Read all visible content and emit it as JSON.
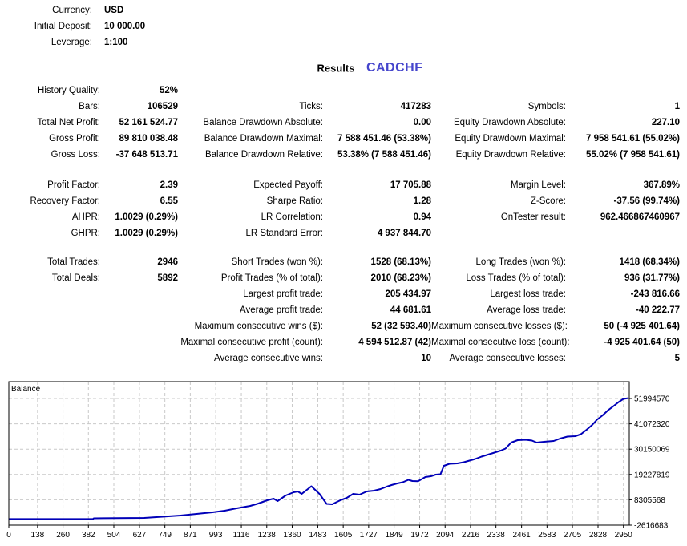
{
  "header": {
    "rows": [
      {
        "label": "Currency:",
        "value": "USD"
      },
      {
        "label": "Initial Deposit:",
        "value": "10 000.00"
      },
      {
        "label": "Leverage:",
        "value": "1:100"
      }
    ]
  },
  "title": {
    "results_label": "Results",
    "symbol": "CADCHF",
    "symbol_color": "#4545cc"
  },
  "stats": {
    "blocks": [
      {
        "rows": [
          [
            "History Quality:",
            "52%",
            "",
            "",
            "",
            ""
          ],
          [
            "Bars:",
            "106529",
            "Ticks:",
            "417283",
            "Symbols:",
            "1"
          ],
          [
            "Total Net Profit:",
            "52 161 524.77",
            "Balance Drawdown Absolute:",
            "0.00",
            "Equity Drawdown Absolute:",
            "227.10"
          ],
          [
            "Gross Profit:",
            "89 810 038.48",
            "Balance Drawdown Maximal:",
            "7 588 451.46 (53.38%)",
            "Equity Drawdown Maximal:",
            "7 958 541.61 (55.02%)"
          ],
          [
            "Gross Loss:",
            "-37 648 513.71",
            "Balance Drawdown Relative:",
            "53.38% (7 588 451.46)",
            "Equity Drawdown Relative:",
            "55.02% (7 958 541.61)"
          ]
        ]
      },
      {
        "rows": [
          [
            "Profit Factor:",
            "2.39",
            "Expected Payoff:",
            "17 705.88",
            "Margin Level:",
            "367.89%"
          ],
          [
            "Recovery Factor:",
            "6.55",
            "Sharpe Ratio:",
            "1.28",
            "Z-Score:",
            "-37.56 (99.74%)"
          ],
          [
            "AHPR:",
            "1.0029 (0.29%)",
            "LR Correlation:",
            "0.94",
            "OnTester result:",
            "962.466867460967"
          ],
          [
            "GHPR:",
            "1.0029 (0.29%)",
            "LR Standard Error:",
            "4 937 844.70",
            "",
            ""
          ]
        ]
      },
      {
        "rows": [
          [
            "Total Trades:",
            "2946",
            "Short Trades (won %):",
            "1528 (68.13%)",
            "Long Trades (won %):",
            "1418 (68.34%)"
          ],
          [
            "Total Deals:",
            "5892",
            "Profit Trades (% of total):",
            "2010 (68.23%)",
            "Loss Trades (% of total):",
            "936 (31.77%)"
          ],
          [
            "",
            "",
            "Largest profit trade:",
            "205 434.97",
            "Largest loss trade:",
            "-243 816.66"
          ],
          [
            "",
            "",
            "Average profit trade:",
            "44 681.61",
            "Average loss trade:",
            "-40 222.77"
          ],
          [
            "",
            "",
            "Maximum consecutive wins ($):",
            "52 (32 593.40)",
            "Maximum consecutive losses ($):",
            "50 (-4 925 401.64)"
          ],
          [
            "",
            "",
            "Maximal consecutive profit (count):",
            "4 594 512.87 (42)",
            "Maximal consecutive loss (count):",
            "-4 925 401.64 (50)"
          ],
          [
            "",
            "",
            "Average consecutive wins:",
            "10",
            "Average consecutive losses:",
            "5"
          ]
        ]
      }
    ]
  },
  "chart_data": {
    "type": "line",
    "title": "Balance",
    "xlabel": "",
    "ylabel": "",
    "grid": true,
    "legend_position": "none",
    "x_range": [
      0,
      2978
    ],
    "y_range": [
      -2616683,
      59252877
    ],
    "x_ticks": [
      0,
      138,
      260,
      382,
      504,
      627,
      749,
      871,
      993,
      1116,
      1238,
      1360,
      1483,
      1605,
      1727,
      1849,
      1972,
      2094,
      2216,
      2338,
      2461,
      2583,
      2705,
      2828,
      2950
    ],
    "y_ticks": [
      51994570,
      41072320,
      30150069,
      19227819,
      8305568,
      -2616683
    ],
    "colors": {
      "line": "#0000b8",
      "grid": "#c9c9c9",
      "border": "#000000",
      "text": "#000000"
    },
    "series": [
      {
        "name": "Balance",
        "points": [
          [
            0,
            10000
          ],
          [
            404,
            10000
          ],
          [
            408,
            320000
          ],
          [
            650,
            490000
          ],
          [
            824,
            1530000
          ],
          [
            901,
            2220000
          ],
          [
            978,
            2910000
          ],
          [
            1036,
            3600000
          ],
          [
            1094,
            4640000
          ],
          [
            1159,
            5680000
          ],
          [
            1198,
            6715000
          ],
          [
            1240,
            8100000
          ],
          [
            1271,
            8790000
          ],
          [
            1290,
            7750000
          ],
          [
            1329,
            10170000
          ],
          [
            1367,
            11550000
          ],
          [
            1387,
            11900000
          ],
          [
            1406,
            10860000
          ],
          [
            1452,
            14150000
          ],
          [
            1491,
            10860000
          ],
          [
            1525,
            6540000
          ],
          [
            1552,
            6370000
          ],
          [
            1591,
            8100000
          ],
          [
            1622,
            9135000
          ],
          [
            1653,
            10860000
          ],
          [
            1683,
            10520000
          ],
          [
            1718,
            11900000
          ],
          [
            1753,
            12250000
          ],
          [
            1784,
            12940000
          ],
          [
            1814,
            13970000
          ],
          [
            1837,
            14670000
          ],
          [
            1864,
            15360000
          ],
          [
            1891,
            15880000
          ],
          [
            1918,
            16910000
          ],
          [
            1937,
            16390000
          ],
          [
            1964,
            16300000
          ],
          [
            1999,
            18120000
          ],
          [
            2026,
            18470000
          ],
          [
            2049,
            19160000
          ],
          [
            2072,
            19330000
          ],
          [
            2088,
            22960000
          ],
          [
            2115,
            23820000
          ],
          [
            2153,
            23990000
          ],
          [
            2184,
            24520000
          ],
          [
            2211,
            25210000
          ],
          [
            2238,
            25900000
          ],
          [
            2269,
            26940000
          ],
          [
            2300,
            27800000
          ],
          [
            2331,
            28660000
          ],
          [
            2361,
            29530000
          ],
          [
            2384,
            30390000
          ],
          [
            2411,
            32980000
          ],
          [
            2442,
            34020000
          ],
          [
            2481,
            34190000
          ],
          [
            2511,
            33850000
          ],
          [
            2534,
            32980000
          ],
          [
            2569,
            33330000
          ],
          [
            2615,
            33675000
          ],
          [
            2646,
            34710000
          ],
          [
            2681,
            35580000
          ],
          [
            2719,
            35750000
          ],
          [
            2746,
            36610000
          ],
          [
            2773,
            38510000
          ],
          [
            2800,
            40590000
          ],
          [
            2823,
            42830000
          ],
          [
            2850,
            44740000
          ],
          [
            2877,
            46980000
          ],
          [
            2900,
            48540000
          ],
          [
            2927,
            50440000
          ],
          [
            2950,
            51820000
          ],
          [
            2975,
            52171525
          ]
        ]
      }
    ]
  }
}
